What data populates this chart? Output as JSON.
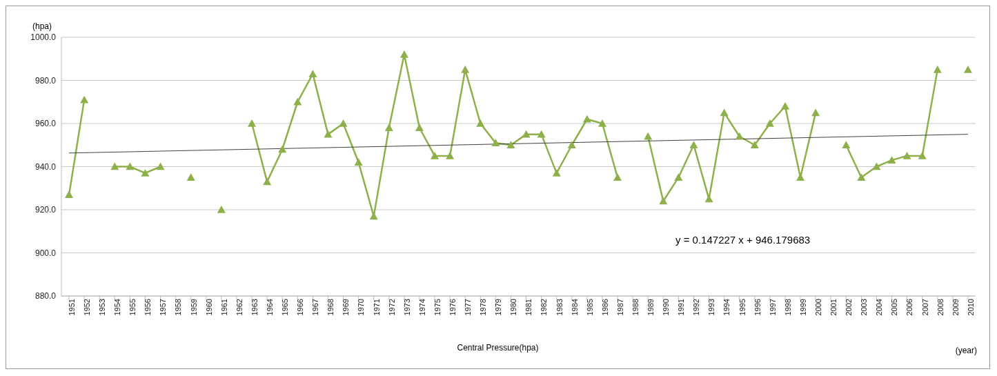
{
  "chart_data": {
    "type": "line",
    "ylabel": "(hpa)",
    "xlabel": "Central Pressure(hpa)",
    "annotations": [
      "(year)",
      "y = 0.147227 x + 946.179683"
    ],
    "x": [
      1951,
      1952,
      1953,
      1954,
      1955,
      1956,
      1957,
      1958,
      1959,
      1960,
      1961,
      1962,
      1963,
      1964,
      1965,
      1966,
      1967,
      1968,
      1969,
      1970,
      1971,
      1972,
      1973,
      1974,
      1975,
      1976,
      1977,
      1978,
      1979,
      1980,
      1981,
      1982,
      1983,
      1984,
      1985,
      1986,
      1987,
      1988,
      1989,
      1990,
      1991,
      1992,
      1993,
      1994,
      1995,
      1996,
      1997,
      1998,
      1999,
      2000,
      2001,
      2002,
      2003,
      2004,
      2005,
      2006,
      2007,
      2008,
      2009,
      2010
    ],
    "series": [
      {
        "color": "#8db04a",
        "marker": "triangle",
        "values": [
          927,
          971,
          null,
          940,
          940,
          937,
          940,
          null,
          935,
          null,
          920,
          null,
          960,
          933,
          948,
          970,
          983,
          955,
          960,
          942,
          917,
          958,
          992,
          958,
          945,
          945,
          985,
          960,
          951,
          950,
          955,
          955,
          937,
          950,
          962,
          960,
          935,
          null,
          954,
          924,
          935,
          950,
          925,
          965,
          954,
          950,
          960,
          968,
          935,
          965,
          null,
          950,
          935,
          940,
          943,
          945,
          945,
          985,
          null,
          985
        ]
      },
      {
        "type": "line",
        "color": "#404040",
        "marker": "none",
        "x": [
          1951,
          2010
        ],
        "values": [
          946.3,
          955.0
        ]
      }
    ],
    "xlim": [
      1950.5,
      2010.5
    ],
    "xticks": [
      1951,
      1952,
      1953,
      1954,
      1955,
      1956,
      1957,
      1958,
      1959,
      1960,
      1961,
      1962,
      1963,
      1964,
      1965,
      1966,
      1967,
      1968,
      1969,
      1970,
      1971,
      1972,
      1973,
      1974,
      1975,
      1976,
      1977,
      1978,
      1979,
      1980,
      1981,
      1982,
      1983,
      1984,
      1985,
      1986,
      1987,
      1988,
      1989,
      1990,
      1991,
      1992,
      1993,
      1994,
      1995,
      1996,
      1997,
      1998,
      1999,
      2000,
      2001,
      2002,
      2003,
      2004,
      2005,
      2006,
      2007,
      2008,
      2009,
      2010
    ],
    "ylim": [
      880,
      1000
    ],
    "yticks": [
      {
        "value": 880,
        "label": "880.0"
      },
      {
        "value": 900,
        "label": "900.0"
      },
      {
        "value": 920,
        "label": "920.0"
      },
      {
        "value": 940,
        "label": "940.0"
      },
      {
        "value": 960,
        "label": "960.0"
      },
      {
        "value": 980,
        "label": "980.0"
      },
      {
        "value": 1000,
        "label": "1000.0"
      }
    ],
    "grid": "y"
  }
}
